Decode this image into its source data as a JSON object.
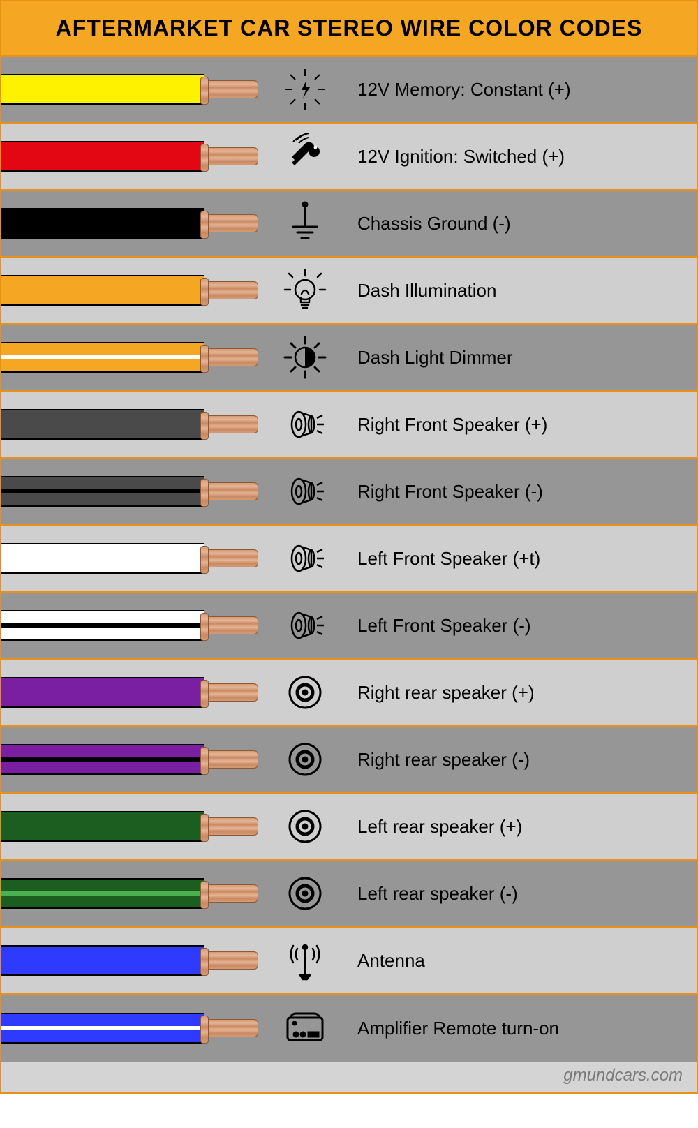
{
  "title": "AFTERMARKET CAR STEREO WIRE COLOR CODES",
  "header_bg": "#f5a623",
  "border_color": "#e8901a",
  "row_bg_dark": "#969696",
  "row_bg_light": "#cfcfcf",
  "copper_color": "#d49b74",
  "footer": "gmundcars.com",
  "rows": [
    {
      "label": "12V Memory: Constant (+)",
      "wire_color": "#fff200",
      "stripe_color": null,
      "icon": "spark",
      "bg": "dark"
    },
    {
      "label": "12V Ignition: Switched (+)",
      "wire_color": "#e30613",
      "stripe_color": null,
      "icon": "key",
      "bg": "light"
    },
    {
      "label": "Chassis Ground (-)",
      "wire_color": "#000000",
      "stripe_color": null,
      "icon": "ground",
      "bg": "dark"
    },
    {
      "label": "Dash Illumination",
      "wire_color": "#f5a623",
      "stripe_color": null,
      "icon": "bulb",
      "bg": "light"
    },
    {
      "label": "Dash Light Dimmer",
      "wire_color": "#f5a623",
      "stripe_color": "#ffffff",
      "icon": "dimmer",
      "bg": "dark"
    },
    {
      "label": "Right Front Speaker (+)",
      "wire_color": "#4a4a4a",
      "stripe_color": null,
      "icon": "speaker1",
      "bg": "light"
    },
    {
      "label": "Right Front Speaker (-)",
      "wire_color": "#4a4a4a",
      "stripe_color": "#000000",
      "icon": "speaker1",
      "bg": "dark"
    },
    {
      "label": "Left Front Speaker (+t)",
      "wire_color": "#ffffff",
      "stripe_color": null,
      "icon": "speaker1",
      "bg": "light"
    },
    {
      "label": "Left Front Speaker (-)",
      "wire_color": "#ffffff",
      "stripe_color": "#000000",
      "icon": "speaker1",
      "bg": "dark"
    },
    {
      "label": "Right rear speaker (+)",
      "wire_color": "#7b1fa2",
      "stripe_color": null,
      "icon": "speaker2",
      "bg": "light"
    },
    {
      "label": "Right rear speaker (-)",
      "wire_color": "#7b1fa2",
      "stripe_color": "#000000",
      "icon": "speaker2",
      "bg": "dark"
    },
    {
      "label": "Left rear speaker (+)",
      "wire_color": "#1b5e20",
      "stripe_color": null,
      "icon": "speaker2",
      "bg": "light"
    },
    {
      "label": "Left rear speaker (-)",
      "wire_color": "#1b5e20",
      "stripe_color": "#4caf50",
      "icon": "speaker2",
      "bg": "dark"
    },
    {
      "label": "Antenna",
      "wire_color": "#2e3bff",
      "stripe_color": null,
      "icon": "antenna",
      "bg": "light"
    },
    {
      "label": "Amplifier Remote turn-on",
      "wire_color": "#2e3bff",
      "stripe_color": "#ffffff",
      "icon": "amp",
      "bg": "dark"
    }
  ],
  "icons_stroke": "#000000"
}
